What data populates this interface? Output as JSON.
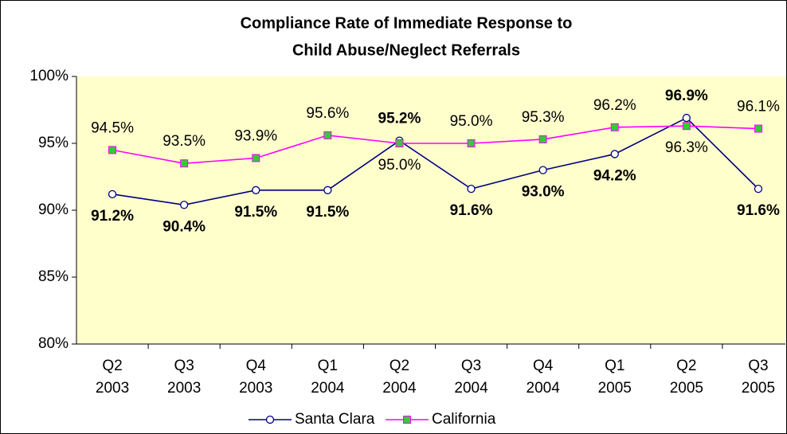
{
  "chart_data": {
    "type": "line",
    "title": [
      "Compliance Rate of Immediate Response to",
      "Child Abuse/Neglect Referrals"
    ],
    "categories": [
      [
        "Q2",
        "2003"
      ],
      [
        "Q3",
        "2003"
      ],
      [
        "Q4",
        "2003"
      ],
      [
        "Q1",
        "2004"
      ],
      [
        "Q2",
        "2004"
      ],
      [
        "Q3",
        "2004"
      ],
      [
        "Q4",
        "2004"
      ],
      [
        "Q1",
        "2005"
      ],
      [
        "Q2",
        "2005"
      ],
      [
        "Q3",
        "2005"
      ]
    ],
    "series": [
      {
        "name": "Santa Clara",
        "color": "#000080",
        "marker": "circle",
        "marker_fill": "#ffffff",
        "values": [
          91.2,
          90.4,
          91.5,
          91.5,
          95.2,
          91.6,
          93.0,
          94.2,
          96.9,
          91.6
        ],
        "value_labels": [
          "91.2%",
          "90.4%",
          "91.5%",
          "91.5%",
          "95.2%",
          "91.6%",
          "93.0%",
          "94.2%",
          "96.9%",
          "91.6%"
        ]
      },
      {
        "name": "California",
        "color": "#ff00ff",
        "marker": "square",
        "marker_fill": "#33cc33",
        "values": [
          94.5,
          93.5,
          93.9,
          95.6,
          95.0,
          95.0,
          95.3,
          96.2,
          96.3,
          96.1
        ],
        "value_labels": [
          "94.5%",
          "93.5%",
          "93.9%",
          "95.6%",
          "95.0%",
          "95.0%",
          "95.3%",
          "96.2%",
          "96.3%",
          "96.1%"
        ]
      }
    ],
    "ylim": [
      80,
      100
    ],
    "yticks": [
      {
        "value": 80,
        "label": "80%"
      },
      {
        "value": 85,
        "label": "85%"
      },
      {
        "value": 90,
        "label": "90%"
      },
      {
        "value": 95,
        "label": "95%"
      },
      {
        "value": 100,
        "label": "100%"
      }
    ],
    "plot_background": "#ffffcc",
    "legend": "bottom"
  }
}
